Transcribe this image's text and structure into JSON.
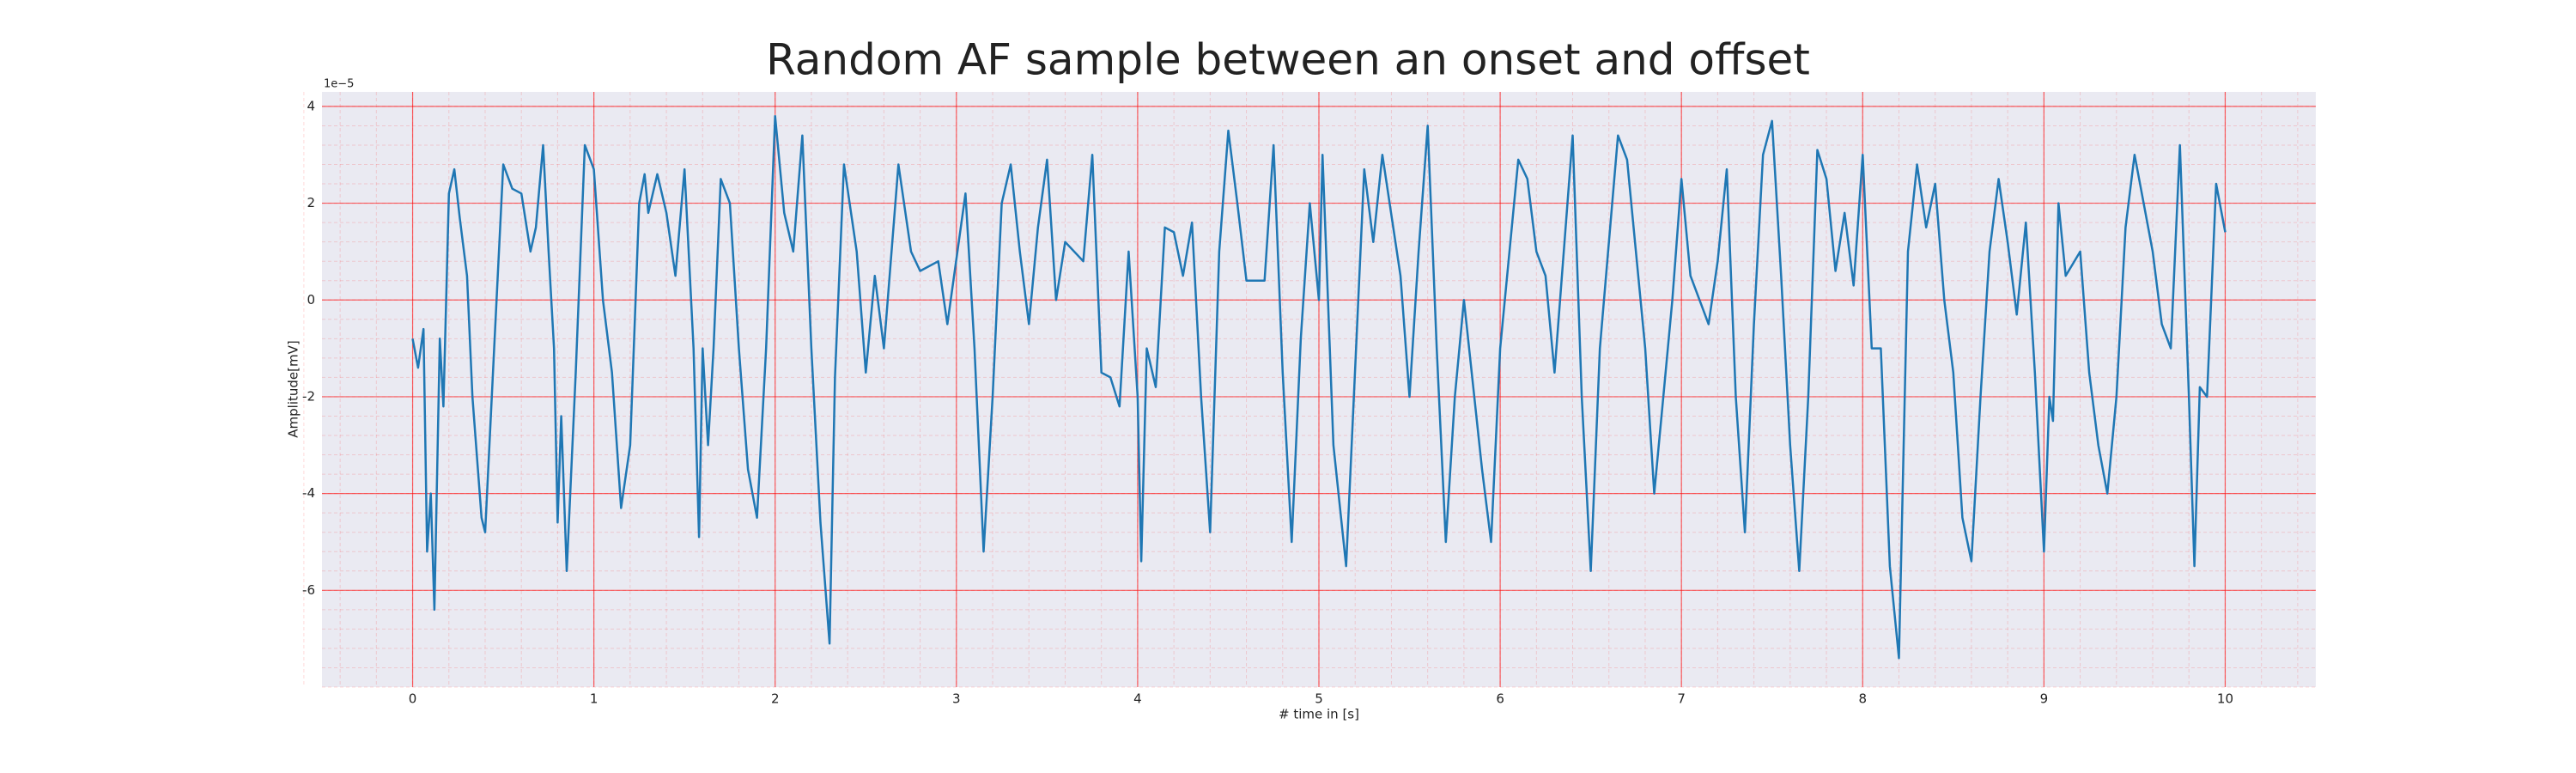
{
  "chart_data": {
    "type": "line",
    "title": "Random AF sample between an onset and offset",
    "xlabel": "# time in [s]",
    "ylabel": "Amplitude[mV]",
    "y_offset_label": "1e−5",
    "x": [
      0,
      0.03,
      0.06,
      0.08,
      0.1,
      0.12,
      0.15,
      0.17,
      0.2,
      0.23,
      0.26,
      0.3,
      0.33,
      0.38,
      0.4,
      0.45,
      0.5,
      0.55,
      0.6,
      0.65,
      0.68,
      0.72,
      0.75,
      0.78,
      0.8,
      0.82,
      0.85,
      0.9,
      0.95,
      1.0,
      1.05,
      1.1,
      1.15,
      1.2,
      1.25,
      1.28,
      1.3,
      1.35,
      1.4,
      1.45,
      1.5,
      1.55,
      1.58,
      1.6,
      1.63,
      1.66,
      1.7,
      1.75,
      1.8,
      1.85,
      1.9,
      1.95,
      2.0,
      2.05,
      2.1,
      2.15,
      2.2,
      2.25,
      2.3,
      2.33,
      2.38,
      2.45,
      2.5,
      2.55,
      2.6,
      2.68,
      2.75,
      2.8,
      2.9,
      2.95,
      3.05,
      3.1,
      3.15,
      3.2,
      3.25,
      3.3,
      3.35,
      3.4,
      3.45,
      3.5,
      3.55,
      3.6,
      3.7,
      3.75,
      3.8,
      3.85,
      3.9,
      3.95,
      4.0,
      4.02,
      4.05,
      4.1,
      4.15,
      4.2,
      4.25,
      4.3,
      4.35,
      4.4,
      4.45,
      4.5,
      4.55,
      4.6,
      4.7,
      4.75,
      4.8,
      4.85,
      4.9,
      4.95,
      5.0,
      5.02,
      5.08,
      5.15,
      5.25,
      5.3,
      5.35,
      5.45,
      5.5,
      5.55,
      5.6,
      5.65,
      5.7,
      5.75,
      5.8,
      5.9,
      5.95,
      6.0,
      6.1,
      6.15,
      6.2,
      6.25,
      6.3,
      6.4,
      6.45,
      6.5,
      6.55,
      6.65,
      6.7,
      6.8,
      6.85,
      6.9,
      6.95,
      7.0,
      7.05,
      7.1,
      7.15,
      7.2,
      7.25,
      7.3,
      7.35,
      7.4,
      7.45,
      7.5,
      7.55,
      7.6,
      7.65,
      7.7,
      7.75,
      7.8,
      7.85,
      7.9,
      7.95,
      8.0,
      8.05,
      8.1,
      8.15,
      8.2,
      8.25,
      8.3,
      8.35,
      8.4,
      8.45,
      8.5,
      8.55,
      8.6,
      8.65,
      8.7,
      8.75,
      8.8,
      8.85,
      8.9,
      8.95,
      9.0,
      9.03,
      9.05,
      9.08,
      9.12,
      9.2,
      9.25,
      9.3,
      9.35,
      9.4,
      9.45,
      9.5,
      9.55,
      9.6,
      9.65,
      9.7,
      9.75,
      9.8,
      9.83,
      9.86,
      9.9,
      9.95,
      10.0
    ],
    "values": [
      -0.8,
      -1.4,
      -0.6,
      -5.2,
      -4,
      -6.4,
      -0.8,
      -2.2,
      2.2,
      2.7,
      1.7,
      0.5,
      -2,
      -4.5,
      -4.8,
      -1,
      2.8,
      2.3,
      2.2,
      1,
      1.5,
      3.2,
      1,
      -1,
      -4.6,
      -2.4,
      -5.6,
      -1.5,
      3.2,
      2.7,
      0,
      -1.5,
      -4.3,
      -3,
      2,
      2.6,
      1.8,
      2.6,
      1.8,
      0.5,
      2.7,
      -1,
      -4.9,
      -1,
      -3,
      -1,
      2.5,
      2,
      -1,
      -3.5,
      -4.5,
      -1,
      3.8,
      1.8,
      1,
      3.4,
      -1,
      -4.6,
      -7.1,
      -1.6,
      2.8,
      1,
      -1.5,
      0.5,
      -1,
      2.8,
      1,
      0.6,
      0.8,
      -0.5,
      2.2,
      -1,
      -5.2,
      -2,
      2,
      2.8,
      1,
      -0.5,
      1.5,
      2.9,
      0,
      1.2,
      0.8,
      3,
      -1.5,
      -1.6,
      -2.2,
      1,
      -2,
      -5.4,
      -1,
      -1.8,
      1.5,
      1.4,
      0.5,
      1.6,
      -2,
      -4.8,
      1,
      3.5,
      2,
      0.4,
      0.4,
      3.2,
      -1.5,
      -5,
      -0.8,
      2,
      0,
      3,
      -3,
      -5.5,
      2.7,
      1.2,
      3,
      0.5,
      -2,
      1,
      3.6,
      -1,
      -5,
      -2,
      0,
      -3.5,
      -5,
      -1,
      2.9,
      2.5,
      1,
      0.5,
      -1.5,
      3.4,
      -2,
      -5.6,
      -1,
      3.4,
      2.9,
      -1,
      -4,
      -2,
      0,
      2.5,
      0.5,
      0,
      -0.5,
      0.8,
      2.7,
      -2,
      -4.8,
      -0.5,
      3,
      3.7,
      0.5,
      -3,
      -5.6,
      -2,
      3.1,
      2.5,
      0.6,
      1.8,
      0.3,
      3,
      -1,
      -1,
      -5.5,
      -7.4,
      1,
      2.8,
      1.5,
      2.4,
      0,
      -1.5,
      -4.5,
      -5.4,
      -2,
      1,
      2.5,
      1.2,
      -0.3,
      1.6,
      -1.5,
      -5.2,
      -2,
      -2.5,
      2,
      0.5,
      1,
      -1.5,
      -3,
      -4,
      -2,
      1.5,
      3,
      2,
      1,
      -0.5,
      -1,
      3.2,
      -2,
      -5.5,
      -1.8,
      -2,
      2.4,
      1.4
    ],
    "color": "#1f77b4",
    "xlim": [
      -0.5,
      10.5
    ],
    "ylim": [
      -8,
      4.3
    ],
    "xticks": [
      0,
      1,
      2,
      3,
      4,
      5,
      6,
      7,
      8,
      9,
      10
    ],
    "yticks": [
      -6,
      -4,
      -2,
      0,
      2,
      4
    ],
    "grid": true,
    "grid_color": "#ff0000",
    "minor_divisions": 5,
    "background": "#eaeaf2"
  }
}
